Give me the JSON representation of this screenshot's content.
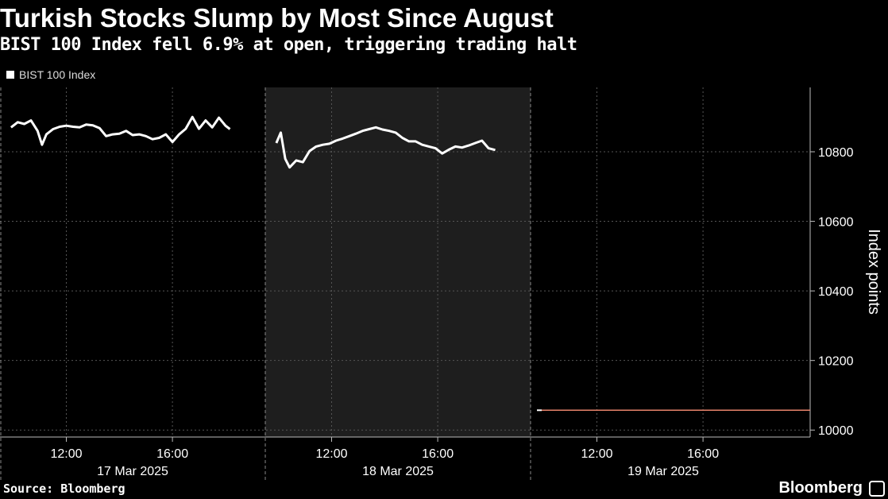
{
  "header": {
    "title": "Turkish Stocks Slump by Most Since August",
    "subtitle": "BIST 100 Index fell 6.9% at open, triggering trading halt"
  },
  "footer": {
    "source": "Source: Bloomberg",
    "brand": "Bloomberg"
  },
  "chart_data": {
    "type": "line",
    "title": "Turkish Stocks Slump by Most Since August",
    "subtitle": "BIST 100 Index fell 6.9% at open, triggering trading halt",
    "ylabel": "Index points",
    "ylim": [
      9980,
      10985
    ],
    "yticks": [
      10000,
      10200,
      10400,
      10600,
      10800
    ],
    "grid": true,
    "legend_position": "top-left",
    "colors": {
      "line": "#ffffff",
      "last_value_line": "#e8836b",
      "shaded_day": "#1e1e1e",
      "grid": "#555555"
    },
    "days": [
      {
        "date": "17 Mar 2025",
        "time_ticks": [
          "12:00",
          "16:00"
        ],
        "shaded": false
      },
      {
        "date": "18 Mar 2025",
        "time_ticks": [
          "12:00",
          "16:00"
        ],
        "shaded": true
      },
      {
        "date": "19 Mar 2025",
        "time_ticks": [
          "12:00",
          "16:00"
        ],
        "shaded": false
      }
    ],
    "series": [
      {
        "name": "BIST 100 Index",
        "segments": [
          {
            "date": "17 Mar 2025",
            "x": [
              "09:55",
              "10:10",
              "10:25",
              "10:40",
              "10:55",
              "11:05",
              "11:15",
              "11:30",
              "11:45",
              "12:00",
              "12:15",
              "12:30",
              "12:45",
              "13:00",
              "13:15",
              "13:30",
              "13:45",
              "14:00",
              "14:15",
              "14:30",
              "14:45",
              "15:00",
              "15:15",
              "15:30",
              "15:45",
              "16:00",
              "16:15",
              "16:30",
              "16:45",
              "17:00",
              "17:15",
              "17:30",
              "17:45",
              "18:00",
              "18:10"
            ],
            "y": [
              10870,
              10885,
              10880,
              10890,
              10860,
              10820,
              10850,
              10865,
              10872,
              10875,
              10872,
              10870,
              10878,
              10876,
              10868,
              10845,
              10850,
              10852,
              10860,
              10848,
              10850,
              10845,
              10836,
              10840,
              10850,
              10828,
              10850,
              10866,
              10900,
              10866,
              10890,
              10870,
              10898,
              10875,
              10865
            ]
          },
          {
            "date": "18 Mar 2025",
            "x": [
              "09:55",
              "10:05",
              "10:15",
              "10:25",
              "10:40",
              "10:55",
              "11:10",
              "11:25",
              "11:40",
              "11:55",
              "12:10",
              "12:25",
              "12:40",
              "12:55",
              "13:10",
              "13:25",
              "13:40",
              "13:55",
              "14:10",
              "14:25",
              "14:40",
              "14:55",
              "15:10",
              "15:25",
              "15:40",
              "15:55",
              "16:10",
              "16:25",
              "16:40",
              "16:55",
              "17:10",
              "17:25",
              "17:40",
              "17:55",
              "18:10"
            ],
            "y": [
              10825,
              10855,
              10780,
              10755,
              10775,
              10770,
              10802,
              10815,
              10820,
              10823,
              10832,
              10838,
              10845,
              10852,
              10860,
              10865,
              10870,
              10864,
              10860,
              10855,
              10840,
              10830,
              10830,
              10820,
              10815,
              10810,
              10795,
              10806,
              10815,
              10812,
              10818,
              10825,
              10832,
              10810,
              10805
            ]
          }
        ]
      }
    ],
    "last_value": 10057
  }
}
